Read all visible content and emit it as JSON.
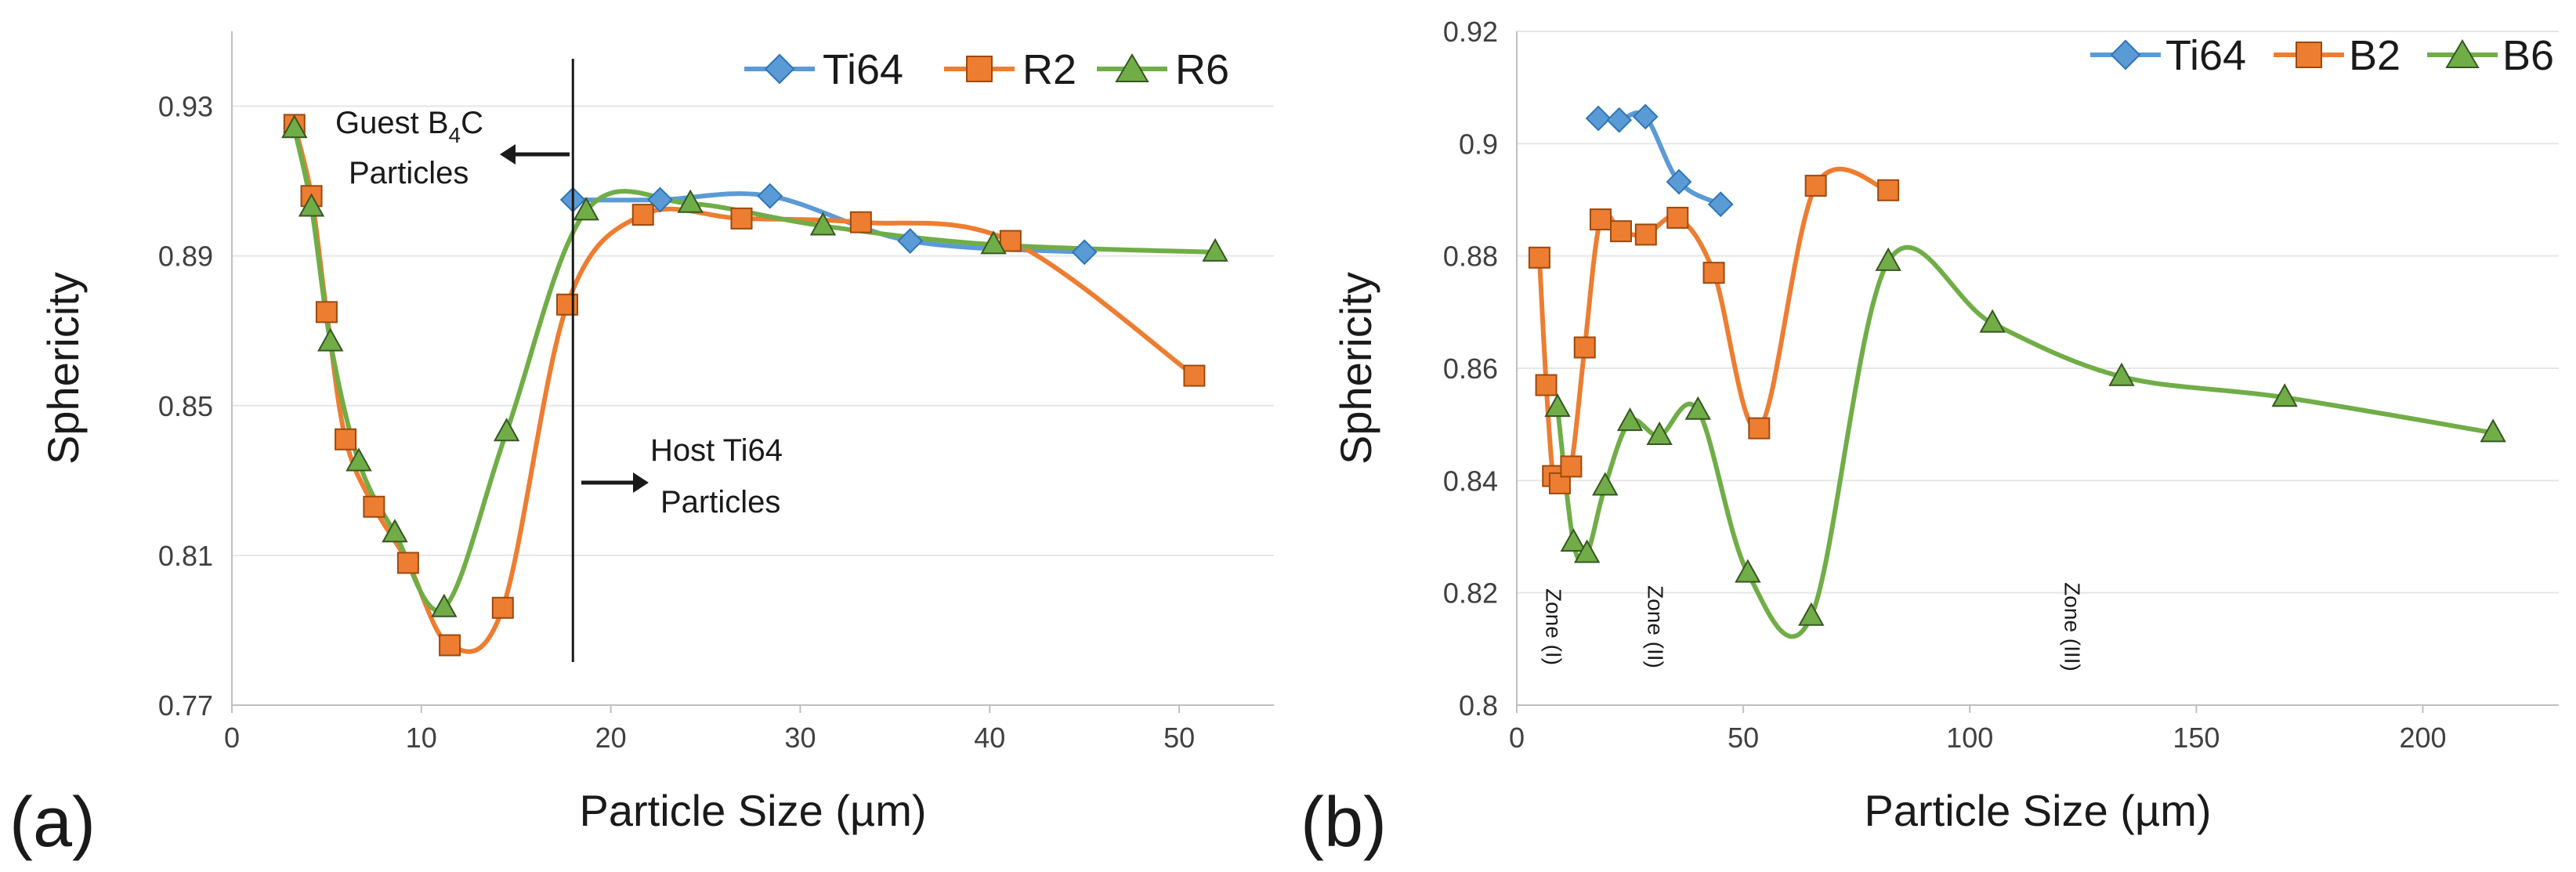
{
  "chart_data": [
    {
      "type": "line",
      "panel": "(a)",
      "title": "",
      "xlabel": "Particle Size (µm)",
      "ylabel": "Sphericity",
      "xlim": [
        0,
        55
      ],
      "ylim": [
        0.77,
        0.95
      ],
      "xticks": [
        0,
        10,
        20,
        30,
        40,
        50
      ],
      "xtick_labels": [
        "0",
        "10",
        "20",
        "30",
        "40",
        "50"
      ],
      "yticks": [
        0.77,
        0.81,
        0.85,
        0.89,
        0.93
      ],
      "ytick_labels": [
        "0.77",
        "0.81",
        "0.85",
        "0.89",
        "0.93"
      ],
      "legend_position": "top-right",
      "series": [
        {
          "name": "Ti64",
          "color": "#5b9bd5",
          "marker": "diamond",
          "x": [
            18.0,
            22.6,
            28.4,
            35.8,
            45.0
          ],
          "y": [
            0.905,
            0.905,
            0.906,
            0.894,
            0.891
          ]
        },
        {
          "name": "R2",
          "color": "#ed7d31",
          "marker": "square",
          "x": [
            3.3,
            4.2,
            5.0,
            6.0,
            7.5,
            9.3,
            11.5,
            14.3,
            17.7,
            21.7,
            26.9,
            33.2,
            41.1,
            50.8
          ],
          "y": [
            0.925,
            0.906,
            0.875,
            0.841,
            0.823,
            0.808,
            0.786,
            0.796,
            0.877,
            0.901,
            0.9,
            0.899,
            0.894,
            0.858
          ]
        },
        {
          "name": "R6",
          "color": "#70ad47",
          "marker": "triangle",
          "x": [
            3.3,
            4.2,
            5.2,
            6.7,
            8.6,
            11.2,
            14.5,
            18.7,
            24.2,
            31.2,
            40.2,
            51.9
          ],
          "y": [
            0.924,
            0.903,
            0.867,
            0.835,
            0.816,
            0.796,
            0.843,
            0.902,
            0.904,
            0.898,
            0.893,
            0.891
          ]
        }
      ],
      "annotations": {
        "guest_line1": "Guest B",
        "guest_sub": "4",
        "guest_line1_end": "C",
        "guest_line2": "Particles",
        "host_line1": "Host Ti64",
        "host_line2": "Particles",
        "divider_x": 18.0
      }
    },
    {
      "type": "line",
      "panel": "(b)",
      "title": "",
      "xlabel": "Particle Size (µm)",
      "ylabel": "Sphericity",
      "xlim": [
        0,
        230
      ],
      "ylim": [
        0.8,
        0.92
      ],
      "xticks": [
        0,
        50,
        100,
        150,
        200
      ],
      "xtick_labels": [
        "0",
        "50",
        "100",
        "150",
        "200"
      ],
      "yticks": [
        0.8,
        0.82,
        0.84,
        0.86,
        0.88,
        0.9,
        0.92
      ],
      "ytick_labels": [
        "0.8",
        "0.82",
        "0.84",
        "0.86",
        "0.88",
        "0.9",
        "0.92"
      ],
      "legend_position": "top-right",
      "series": [
        {
          "name": "Ti64",
          "color": "#5b9bd5",
          "marker": "diamond",
          "x": [
            18.0,
            22.6,
            28.4,
            35.8,
            45.0
          ],
          "y": [
            0.9045,
            0.9042,
            0.9048,
            0.8932,
            0.8892
          ]
        },
        {
          "name": "B2",
          "color": "#ed7d31",
          "marker": "square",
          "x": [
            5.0,
            6.5,
            8.0,
            9.5,
            12.0,
            15.0,
            18.5,
            23.0,
            28.5,
            35.5,
            43.5,
            53.5,
            66.0,
            82.0
          ],
          "y": [
            0.8797,
            0.857,
            0.8408,
            0.8395,
            0.8425,
            0.8637,
            0.8865,
            0.8844,
            0.8838,
            0.8868,
            0.877,
            0.8493,
            0.8925,
            0.8917
          ]
        },
        {
          "name": "B6",
          "color": "#70ad47",
          "marker": "triangle",
          "x": [
            9.0,
            12.5,
            15.5,
            19.5,
            25.0,
            31.5,
            40.0,
            51.0,
            65.0,
            82.0,
            105.0,
            133.5,
            169.5,
            215.5
          ],
          "y": [
            0.853,
            0.829,
            0.827,
            0.839,
            0.8505,
            0.848,
            0.8525,
            0.8235,
            0.8158,
            0.879,
            0.868,
            0.8585,
            0.8548,
            0.8485
          ]
        }
      ],
      "annotations": {
        "zones": [
          {
            "label": "Zone (I)",
            "x": 6.5
          },
          {
            "label": "Zone (II)",
            "x": 29.0
          },
          {
            "label": "Zone (III)",
            "x": 121.0
          }
        ]
      }
    }
  ]
}
